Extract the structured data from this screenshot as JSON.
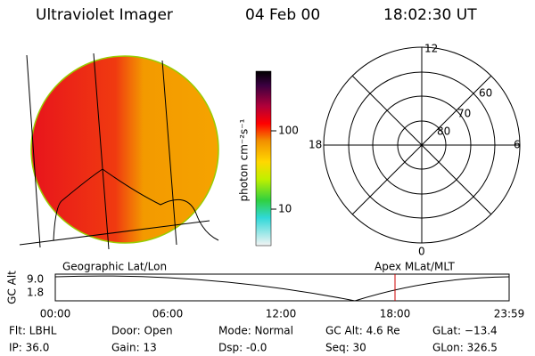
{
  "header": {
    "title": "Ultraviolet Imager",
    "date": "04 Feb 00",
    "time": "18:02:30 UT"
  },
  "colorbar": {
    "label": "photon cm⁻²s⁻¹",
    "ticks": [
      "100",
      "10"
    ]
  },
  "polar_plot": {
    "top": "12",
    "left": "18",
    "right": "6",
    "bottom": "0",
    "rings": [
      "60",
      "70",
      "80"
    ]
  },
  "map_labels": {
    "left": "Geographic Lat/Lon",
    "right": "Apex MLat/MLT"
  },
  "timeline": {
    "axis_label": "GC Alt",
    "yticks": [
      "9.0",
      "1.8"
    ],
    "xticks": [
      "00:00",
      "06:00",
      "12:00",
      "18:00",
      "23:59"
    ]
  },
  "info": [
    [
      "Flt: LBHL",
      "Door: Open",
      "Mode: Normal",
      "GC Alt: 4.6 Re",
      "GLat: −13.4"
    ],
    [
      "IP: 36.0",
      "Gain: 13",
      "Dsp:  -0.0",
      "Seq: 30",
      "GLon: 326.5"
    ]
  ]
}
